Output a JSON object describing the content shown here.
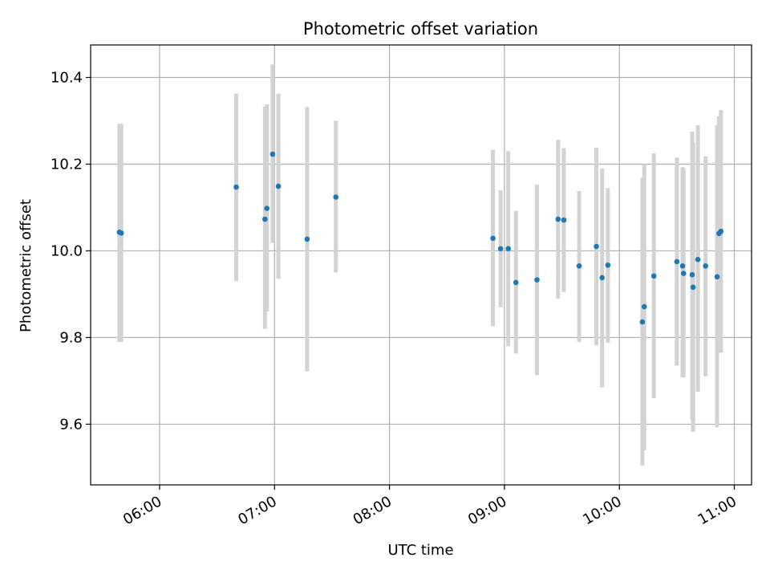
{
  "chart_data": {
    "type": "scatter",
    "title": "Photometric offset variation",
    "xlabel": "UTC time",
    "ylabel": "Photometric offset",
    "x_axis": {
      "kind": "time",
      "range": [
        "05:24",
        "11:09"
      ],
      "ticks": [
        "06:00",
        "07:00",
        "08:00",
        "09:00",
        "10:00",
        "11:00"
      ]
    },
    "y_axis": {
      "range": [
        9.46,
        10.475
      ],
      "ticks": [
        9.6,
        9.8,
        10.0,
        10.2,
        10.4
      ],
      "tick_labels": [
        "9.6",
        "9.8",
        "10.0",
        "10.2",
        "10.4"
      ]
    },
    "grid": true,
    "colors": {
      "point": "#1f77b4",
      "errorbar": "#d3d3d3",
      "grid": "#b0b0b0"
    },
    "points": [
      {
        "x": "05:39",
        "y": 10.043,
        "ylo": 9.79,
        "yhi": 10.293
      },
      {
        "x": "05:40",
        "y": 10.041,
        "ylo": 9.79,
        "yhi": 10.293
      },
      {
        "x": "06:40",
        "y": 10.147,
        "ylo": 9.93,
        "yhi": 10.363
      },
      {
        "x": "06:55",
        "y": 10.073,
        "ylo": 9.82,
        "yhi": 10.333
      },
      {
        "x": "06:56",
        "y": 10.098,
        "ylo": 9.86,
        "yhi": 10.338
      },
      {
        "x": "06:59",
        "y": 10.223,
        "ylo": 10.018,
        "yhi": 10.43
      },
      {
        "x": "07:02",
        "y": 10.149,
        "ylo": 9.935,
        "yhi": 10.363
      },
      {
        "x": "07:17",
        "y": 10.027,
        "ylo": 9.722,
        "yhi": 10.332
      },
      {
        "x": "07:32",
        "y": 10.124,
        "ylo": 9.95,
        "yhi": 10.3
      },
      {
        "x": "08:54",
        "y": 10.029,
        "ylo": 9.826,
        "yhi": 10.233
      },
      {
        "x": "08:58",
        "y": 10.005,
        "ylo": 9.87,
        "yhi": 10.14
      },
      {
        "x": "09:02",
        "y": 10.005,
        "ylo": 9.78,
        "yhi": 10.23
      },
      {
        "x": "09:06",
        "y": 9.927,
        "ylo": 9.763,
        "yhi": 10.092
      },
      {
        "x": "09:17",
        "y": 9.933,
        "ylo": 9.713,
        "yhi": 10.153
      },
      {
        "x": "09:28",
        "y": 10.073,
        "ylo": 9.89,
        "yhi": 10.256
      },
      {
        "x": "09:31",
        "y": 10.071,
        "ylo": 9.905,
        "yhi": 10.237
      },
      {
        "x": "09:39",
        "y": 9.965,
        "ylo": 9.79,
        "yhi": 10.138
      },
      {
        "x": "09:48",
        "y": 10.01,
        "ylo": 9.782,
        "yhi": 10.238
      },
      {
        "x": "09:51",
        "y": 9.938,
        "ylo": 9.685,
        "yhi": 10.19
      },
      {
        "x": "09:54",
        "y": 9.967,
        "ylo": 9.788,
        "yhi": 10.145
      },
      {
        "x": "10:12",
        "y": 9.836,
        "ylo": 9.505,
        "yhi": 10.168
      },
      {
        "x": "10:13",
        "y": 9.871,
        "ylo": 9.54,
        "yhi": 10.2
      },
      {
        "x": "10:18",
        "y": 9.942,
        "ylo": 9.66,
        "yhi": 10.225
      },
      {
        "x": "10:30",
        "y": 9.975,
        "ylo": 9.735,
        "yhi": 10.215
      },
      {
        "x": "10:33",
        "y": 9.965,
        "ylo": 9.708,
        "yhi": 10.193
      },
      {
        "x": "10:33.5",
        "y": 9.948,
        "ylo": 9.708,
        "yhi": 10.19
      },
      {
        "x": "10:38",
        "y": 9.945,
        "ylo": 9.61,
        "yhi": 10.275
      },
      {
        "x": "10:38.5",
        "y": 9.916,
        "ylo": 9.583,
        "yhi": 10.25
      },
      {
        "x": "10:41",
        "y": 9.98,
        "ylo": 9.675,
        "yhi": 10.29
      },
      {
        "x": "10:45",
        "y": 9.965,
        "ylo": 9.71,
        "yhi": 10.218
      },
      {
        "x": "10:51",
        "y": 9.94,
        "ylo": 9.593,
        "yhi": 10.29
      },
      {
        "x": "10:52",
        "y": 10.04,
        "ylo": 9.765,
        "yhi": 10.31
      },
      {
        "x": "10:53",
        "y": 10.045,
        "ylo": 9.765,
        "yhi": 10.325
      }
    ]
  }
}
